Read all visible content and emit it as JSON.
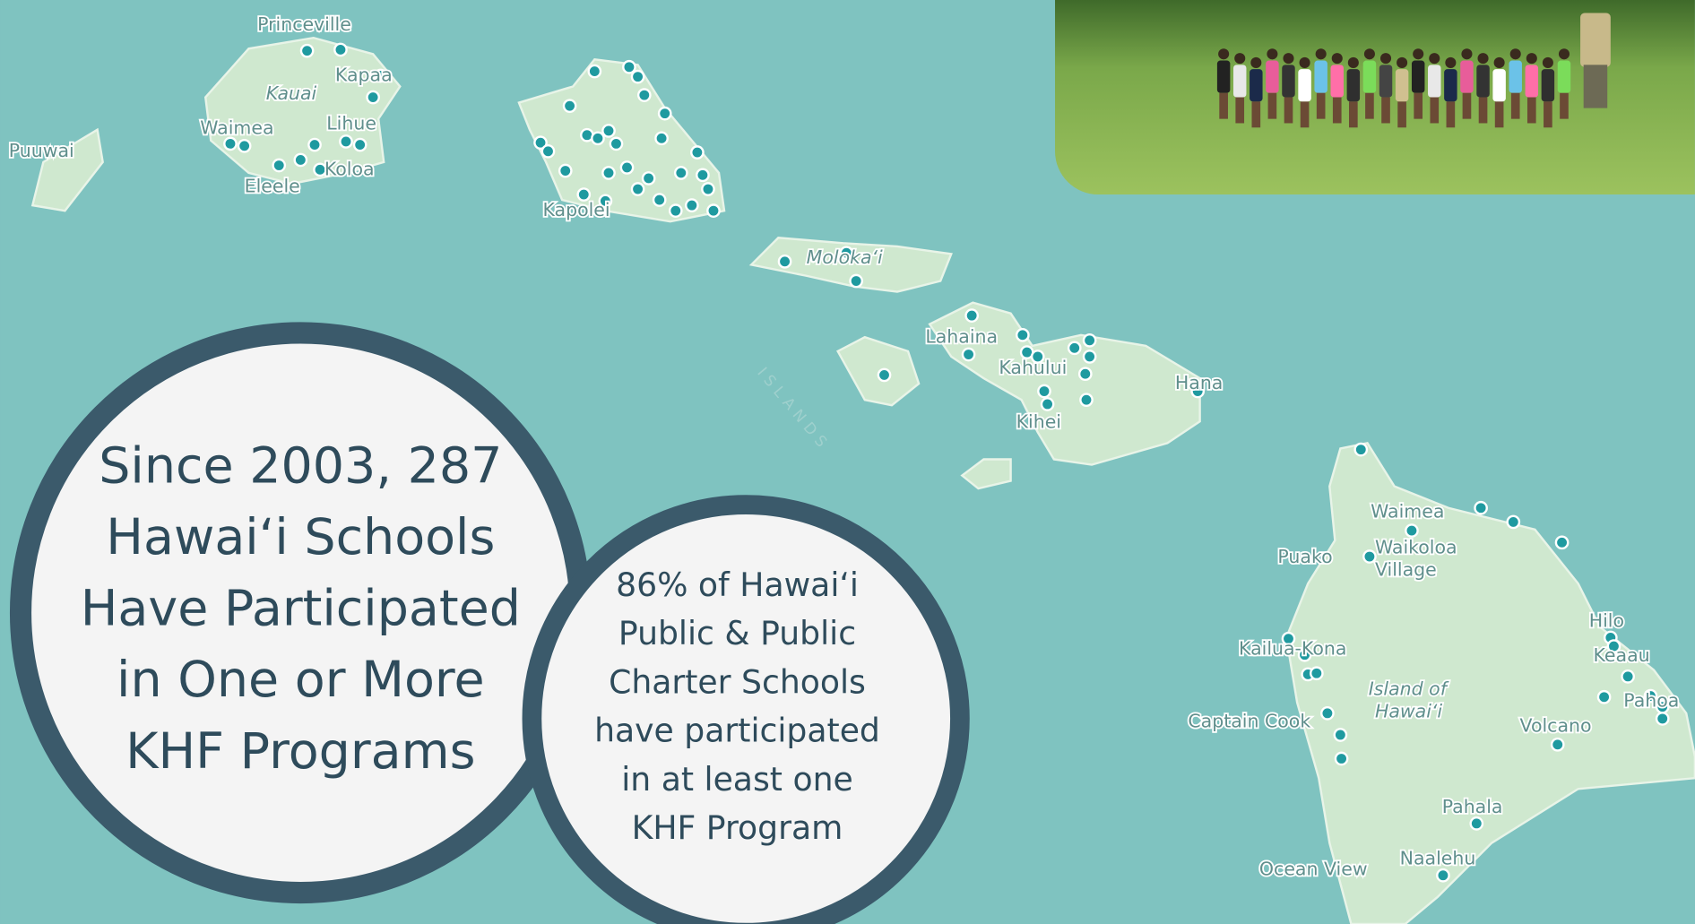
{
  "map": {
    "places": [
      "Princeville",
      "Kauai",
      "Kapaa",
      "Waimea",
      "Lihue",
      "Koloa",
      "Eleele",
      "Puuwai",
      "Kapolei",
      "Molokaʻi",
      "Lahaina",
      "Kahului",
      "Kihei",
      "Hana",
      "ISLANDS",
      "Waimea",
      "Puako",
      "Waikoloa",
      "Village",
      "Hilo",
      "Keaau",
      "Kailua-Kona",
      "Island of",
      "Hawaiʻi",
      "Pahoa",
      "Captain Cook",
      "Volcano",
      "Pahala",
      "Ocean View",
      "Naalehu"
    ],
    "main_stat": [
      "Since 2003, 287",
      "Hawaiʻi Schools",
      "Have Participated",
      "in One or More",
      "KHF Programs"
    ],
    "secondary_stat": [
      "86% of Hawaiʻi",
      "Public & Public",
      "Charter Schools",
      "have participated",
      "in at least one",
      "KHF Program"
    ]
  }
}
